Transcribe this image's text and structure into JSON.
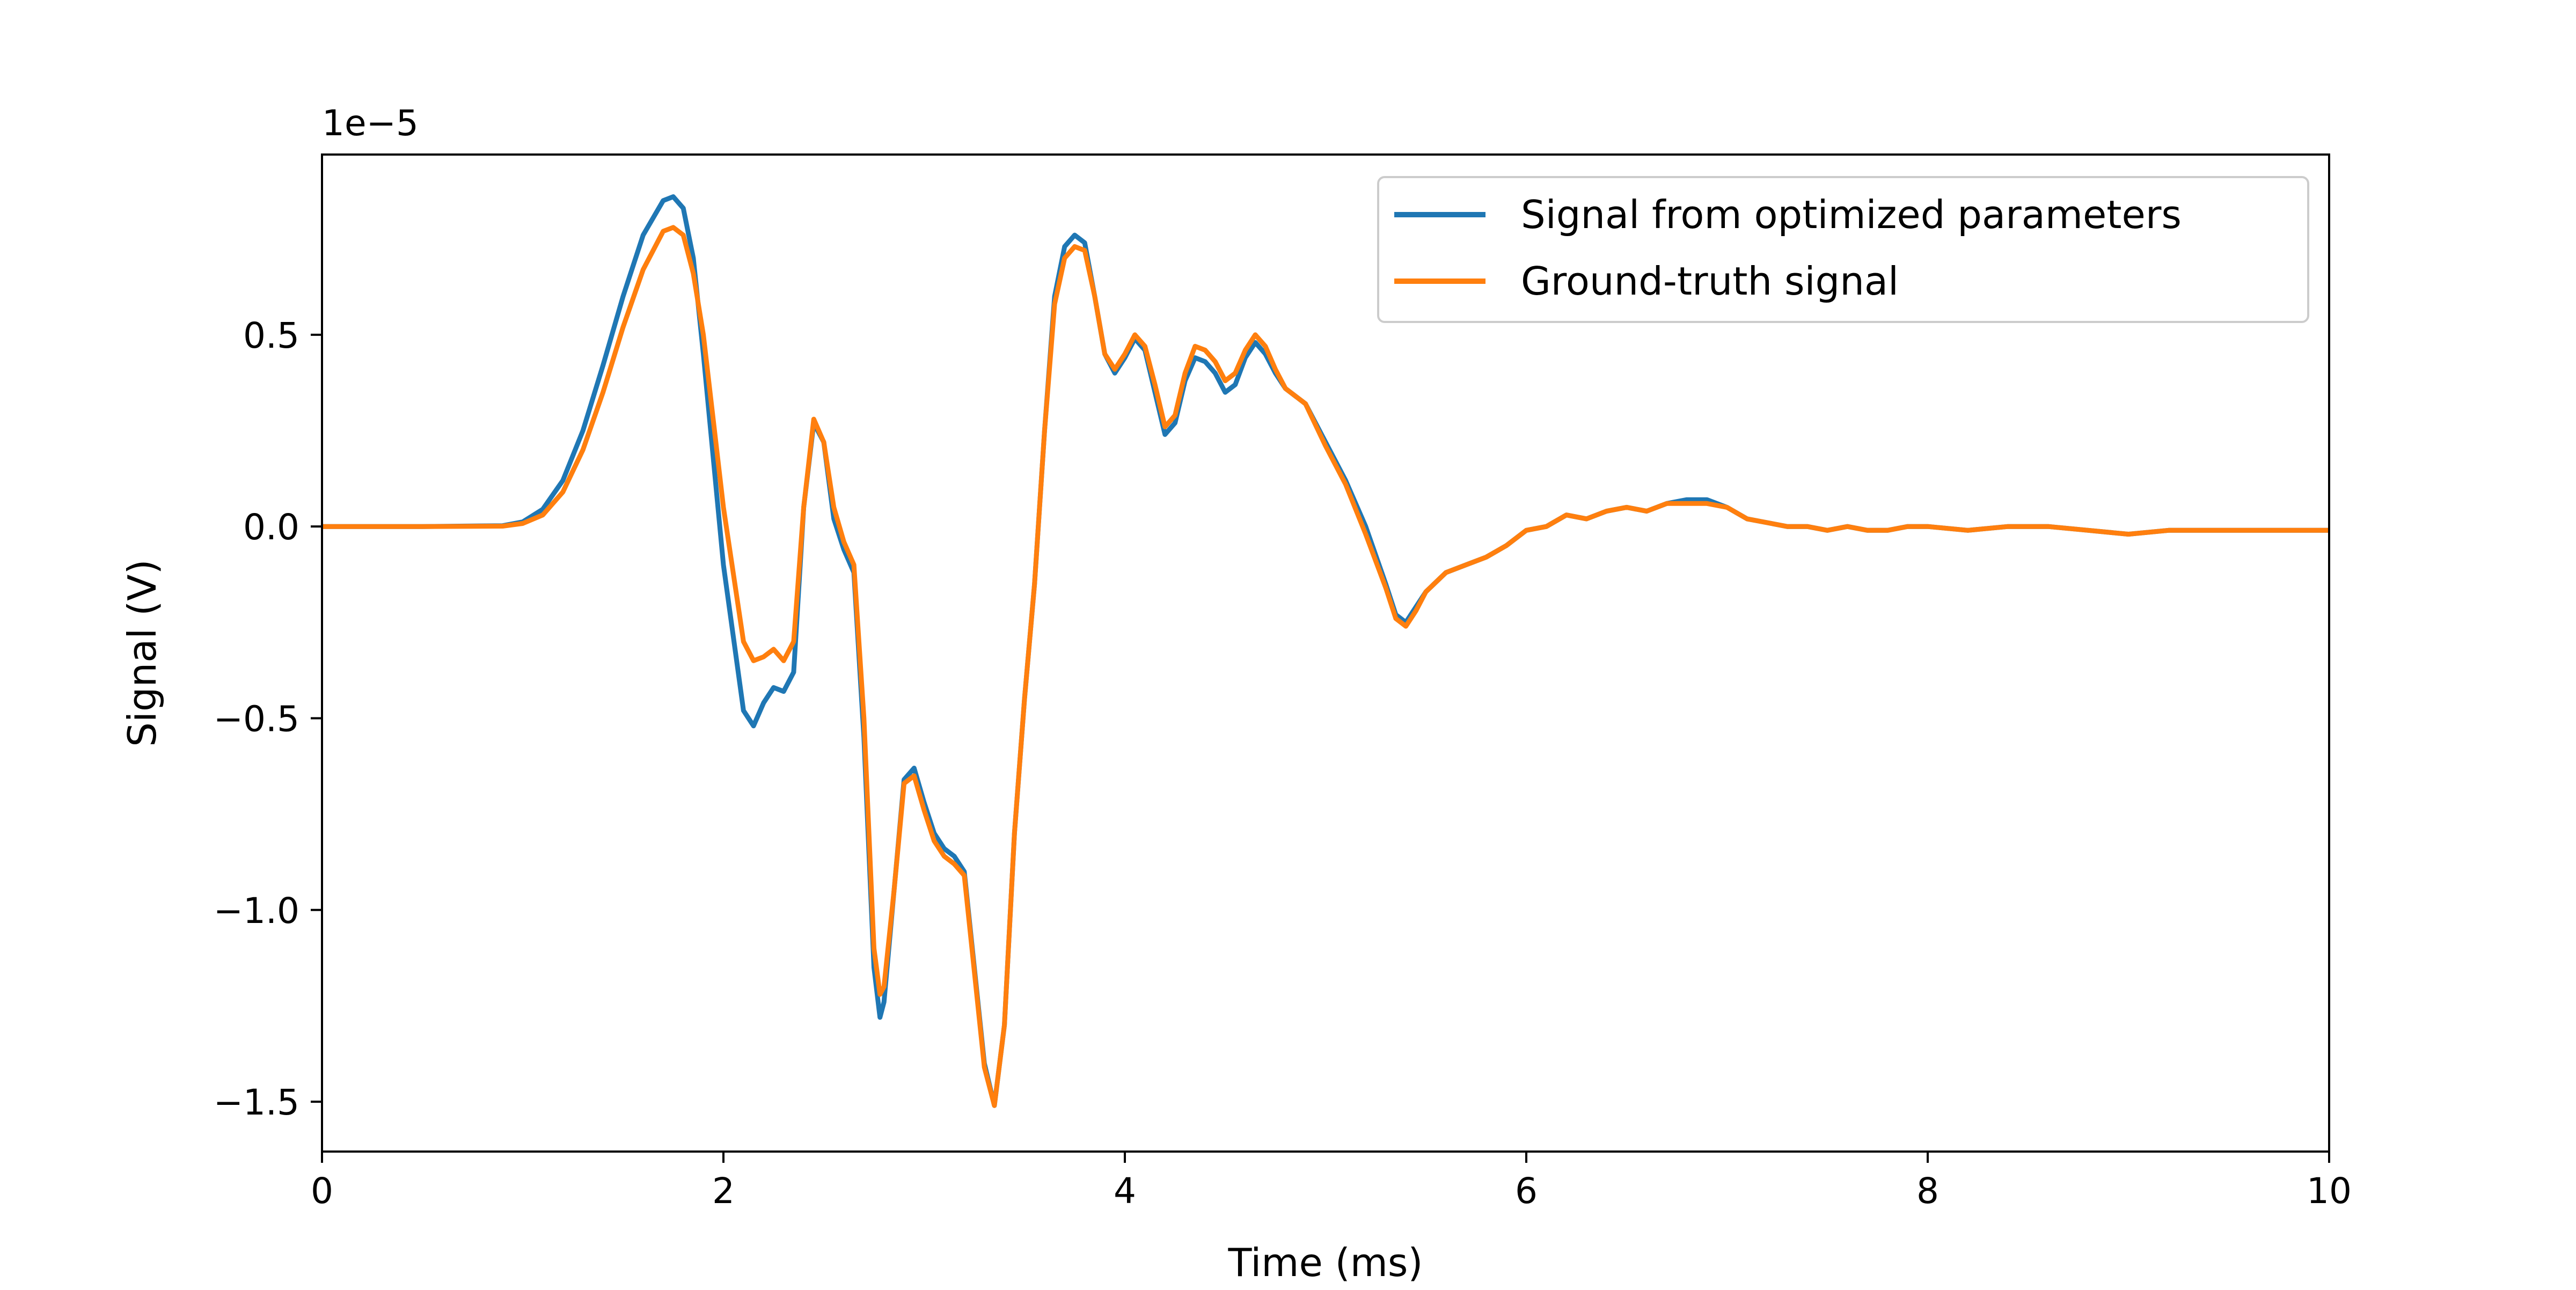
{
  "chart_data": {
    "type": "line",
    "title": "",
    "xlabel": "Time (ms)",
    "ylabel": "Signal (V)",
    "y_scale_label": "1e−5",
    "y_multiplier": 1e-05,
    "xlim": [
      0,
      10
    ],
    "ylim": [
      -1.63,
      0.97
    ],
    "x_ticks": [
      0,
      2,
      4,
      6,
      8,
      10
    ],
    "x_tick_labels": [
      "0",
      "2",
      "4",
      "6",
      "8",
      "10"
    ],
    "y_ticks": [
      -1.5,
      -1.0,
      -0.5,
      0.0,
      0.5
    ],
    "y_tick_labels": [
      "−1.5",
      "−1.0",
      "−0.5",
      "0.0",
      "0.5"
    ],
    "grid": false,
    "legend_position": "top-right",
    "series": [
      {
        "name": "Signal from optimized parameters",
        "color": "#1f77b4",
        "x": [
          0,
          0.5,
          0.9,
          1.0,
          1.1,
          1.2,
          1.3,
          1.4,
          1.5,
          1.6,
          1.7,
          1.75,
          1.8,
          1.85,
          1.9,
          2.0,
          2.1,
          2.15,
          2.2,
          2.25,
          2.3,
          2.35,
          2.4,
          2.45,
          2.5,
          2.55,
          2.6,
          2.65,
          2.7,
          2.75,
          2.78,
          2.8,
          2.85,
          2.9,
          2.95,
          3.0,
          3.05,
          3.1,
          3.15,
          3.2,
          3.25,
          3.3,
          3.35,
          3.4,
          3.45,
          3.5,
          3.55,
          3.6,
          3.65,
          3.7,
          3.75,
          3.8,
          3.85,
          3.9,
          3.95,
          4.0,
          4.05,
          4.1,
          4.15,
          4.2,
          4.25,
          4.3,
          4.35,
          4.4,
          4.45,
          4.5,
          4.55,
          4.6,
          4.65,
          4.7,
          4.75,
          4.8,
          4.9,
          5.0,
          5.1,
          5.2,
          5.3,
          5.35,
          5.4,
          5.45,
          5.5,
          5.6,
          5.7,
          5.8,
          5.9,
          6.0,
          6.1,
          6.2,
          6.3,
          6.4,
          6.5,
          6.6,
          6.7,
          6.8,
          6.9,
          7.0,
          7.1,
          7.2,
          7.3,
          7.4,
          7.5,
          7.6,
          7.7,
          7.8,
          7.9,
          8.0,
          8.2,
          8.4,
          8.6,
          8.8,
          9.0,
          9.2,
          9.4,
          9.6,
          9.8,
          10.0
        ],
        "values": [
          0.0,
          0.0,
          0.002,
          0.012,
          0.045,
          0.12,
          0.25,
          0.42,
          0.6,
          0.76,
          0.85,
          0.86,
          0.83,
          0.7,
          0.45,
          -0.1,
          -0.48,
          -0.52,
          -0.46,
          -0.42,
          -0.43,
          -0.38,
          0.05,
          0.27,
          0.22,
          0.02,
          -0.06,
          -0.12,
          -0.55,
          -1.15,
          -1.28,
          -1.24,
          -0.95,
          -0.66,
          -0.63,
          -0.72,
          -0.8,
          -0.84,
          -0.86,
          -0.9,
          -1.15,
          -1.4,
          -1.51,
          -1.3,
          -0.8,
          -0.45,
          -0.15,
          0.25,
          0.6,
          0.73,
          0.76,
          0.74,
          0.6,
          0.45,
          0.4,
          0.44,
          0.49,
          0.46,
          0.35,
          0.24,
          0.27,
          0.38,
          0.44,
          0.43,
          0.4,
          0.35,
          0.37,
          0.44,
          0.48,
          0.45,
          0.4,
          0.36,
          0.32,
          0.22,
          0.12,
          0.0,
          -0.15,
          -0.23,
          -0.25,
          -0.21,
          -0.17,
          -0.12,
          -0.1,
          -0.08,
          -0.05,
          -0.01,
          0.0,
          0.03,
          0.02,
          0.04,
          0.05,
          0.04,
          0.06,
          0.07,
          0.07,
          0.05,
          0.02,
          0.01,
          0.0,
          0.0,
          -0.01,
          0.0,
          -0.01,
          -0.01,
          0.0,
          0.0,
          -0.01,
          0.0,
          0.0,
          -0.01,
          -0.02,
          -0.01,
          -0.01,
          -0.01,
          -0.01,
          -0.01
        ]
      },
      {
        "name": "Ground-truth signal",
        "color": "#ff7f0e",
        "x": [
          0,
          0.5,
          0.9,
          1.0,
          1.1,
          1.2,
          1.3,
          1.4,
          1.5,
          1.6,
          1.7,
          1.75,
          1.8,
          1.85,
          1.9,
          2.0,
          2.1,
          2.15,
          2.2,
          2.25,
          2.3,
          2.35,
          2.4,
          2.45,
          2.5,
          2.55,
          2.6,
          2.65,
          2.7,
          2.75,
          2.78,
          2.8,
          2.85,
          2.9,
          2.95,
          3.0,
          3.05,
          3.1,
          3.15,
          3.2,
          3.25,
          3.3,
          3.35,
          3.4,
          3.45,
          3.5,
          3.55,
          3.6,
          3.65,
          3.7,
          3.75,
          3.8,
          3.85,
          3.9,
          3.95,
          4.0,
          4.05,
          4.1,
          4.15,
          4.2,
          4.25,
          4.3,
          4.35,
          4.4,
          4.45,
          4.5,
          4.55,
          4.6,
          4.65,
          4.7,
          4.75,
          4.8,
          4.9,
          5.0,
          5.1,
          5.2,
          5.3,
          5.35,
          5.4,
          5.45,
          5.5,
          5.6,
          5.7,
          5.8,
          5.9,
          6.0,
          6.1,
          6.2,
          6.3,
          6.4,
          6.5,
          6.6,
          6.7,
          6.8,
          6.9,
          7.0,
          7.1,
          7.2,
          7.3,
          7.4,
          7.5,
          7.6,
          7.7,
          7.8,
          7.9,
          8.0,
          8.2,
          8.4,
          8.6,
          8.8,
          9.0,
          9.2,
          9.4,
          9.6,
          9.8,
          10.0
        ],
        "values": [
          0.0,
          0.0,
          0.001,
          0.008,
          0.03,
          0.09,
          0.2,
          0.35,
          0.52,
          0.67,
          0.77,
          0.78,
          0.76,
          0.66,
          0.5,
          0.05,
          -0.3,
          -0.35,
          -0.34,
          -0.32,
          -0.35,
          -0.3,
          0.05,
          0.28,
          0.22,
          0.05,
          -0.04,
          -0.1,
          -0.5,
          -1.1,
          -1.22,
          -1.2,
          -0.95,
          -0.67,
          -0.65,
          -0.74,
          -0.82,
          -0.86,
          -0.88,
          -0.91,
          -1.16,
          -1.41,
          -1.51,
          -1.3,
          -0.8,
          -0.45,
          -0.15,
          0.25,
          0.58,
          0.7,
          0.73,
          0.72,
          0.6,
          0.45,
          0.41,
          0.45,
          0.5,
          0.47,
          0.37,
          0.26,
          0.29,
          0.4,
          0.47,
          0.46,
          0.43,
          0.38,
          0.4,
          0.46,
          0.5,
          0.47,
          0.41,
          0.36,
          0.32,
          0.21,
          0.11,
          -0.02,
          -0.16,
          -0.24,
          -0.26,
          -0.22,
          -0.17,
          -0.12,
          -0.1,
          -0.08,
          -0.05,
          -0.01,
          0.0,
          0.03,
          0.02,
          0.04,
          0.05,
          0.04,
          0.06,
          0.06,
          0.06,
          0.05,
          0.02,
          0.01,
          0.0,
          0.0,
          -0.01,
          0.0,
          -0.01,
          -0.01,
          0.0,
          0.0,
          -0.01,
          0.0,
          0.0,
          -0.01,
          -0.02,
          -0.01,
          -0.01,
          -0.01,
          -0.01,
          -0.01
        ]
      }
    ]
  }
}
